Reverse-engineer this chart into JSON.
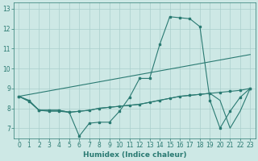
{
  "xlabel": "Humidex (Indice chaleur)",
  "bg_color": "#cde8e5",
  "line_color": "#2a7a72",
  "grid_color": "#aacfcc",
  "xlim": [
    -0.5,
    23.5
  ],
  "ylim": [
    6.5,
    13.3
  ],
  "xticks": [
    0,
    1,
    2,
    3,
    4,
    5,
    6,
    7,
    8,
    9,
    10,
    11,
    12,
    13,
    14,
    15,
    16,
    17,
    18,
    19,
    20,
    21,
    22,
    23
  ],
  "yticks": [
    7,
    8,
    9,
    10,
    11,
    12,
    13
  ],
  "line1_x": [
    0,
    1,
    2,
    3,
    4,
    5,
    6,
    7,
    8,
    9,
    10,
    11,
    12,
    13,
    14,
    15,
    16,
    17,
    18,
    19,
    20,
    21,
    22,
    23
  ],
  "line1_y": [
    8.6,
    8.4,
    7.9,
    7.85,
    7.85,
    7.8,
    6.6,
    7.25,
    7.3,
    7.3,
    7.85,
    8.55,
    9.5,
    9.5,
    11.2,
    12.6,
    12.55,
    12.5,
    12.1,
    8.4,
    7.0,
    7.85,
    8.55,
    9.0
  ],
  "line2_x": [
    0,
    1,
    2,
    3,
    4,
    5,
    6,
    7,
    8,
    9,
    10,
    11,
    12,
    13,
    14,
    15,
    16,
    17,
    18,
    19,
    20,
    21,
    22,
    23
  ],
  "line2_y": [
    8.6,
    8.35,
    7.9,
    7.9,
    7.9,
    7.8,
    7.85,
    7.9,
    8.0,
    8.05,
    8.1,
    8.15,
    8.2,
    8.3,
    8.4,
    8.5,
    8.6,
    8.65,
    8.7,
    8.75,
    8.8,
    8.85,
    8.9,
    9.0
  ],
  "line3_x": [
    0,
    23
  ],
  "line3_y": [
    8.6,
    10.7
  ],
  "line4_x": [
    0,
    1,
    2,
    3,
    4,
    5,
    6,
    7,
    8,
    9,
    10,
    11,
    12,
    13,
    14,
    15,
    16,
    17,
    18,
    19,
    20,
    21,
    22,
    23
  ],
  "line4_y": [
    8.6,
    8.35,
    7.9,
    7.9,
    7.9,
    7.8,
    7.85,
    7.9,
    8.0,
    8.05,
    8.1,
    8.15,
    8.2,
    8.3,
    8.4,
    8.5,
    8.6,
    8.65,
    8.7,
    8.75,
    8.4,
    7.0,
    7.85,
    9.0
  ]
}
